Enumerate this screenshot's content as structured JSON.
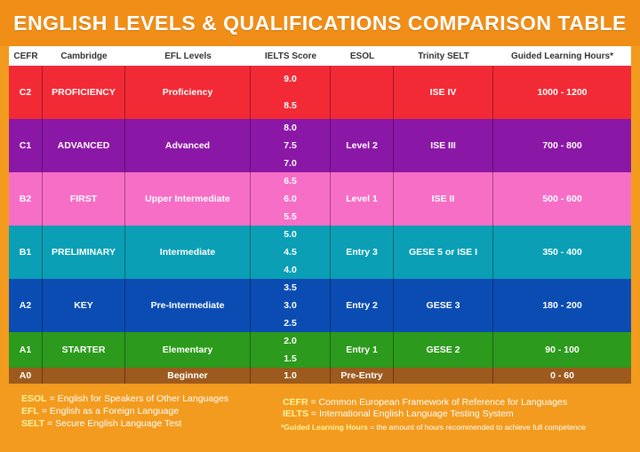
{
  "title": "ENGLISH LEVELS & QUALIFICATIONS COMPARISON TABLE",
  "headers": [
    "CEFR",
    "Cambridge",
    "EFL Levels",
    "IELTS Score",
    "ESOL",
    "Trinity SELT",
    "Guided Learning Hours*"
  ],
  "rows": [
    {
      "cefr": "C2",
      "cambridge": "PROFICIENCY",
      "efl": "Proficiency",
      "ielts": [
        "9.0",
        "8.5"
      ],
      "esol": "",
      "trinity": "ISE IV",
      "hours": "1000 - 1200",
      "color": "#f12a36"
    },
    {
      "cefr": "C1",
      "cambridge": "ADVANCED",
      "efl": "Advanced",
      "ielts": [
        "8.0",
        "7.5",
        "7.0"
      ],
      "esol": "Level 2",
      "trinity": "ISE III",
      "hours": "700 - 800",
      "color": "#8b17a6"
    },
    {
      "cefr": "B2",
      "cambridge": "FIRST",
      "efl": "Upper Intermediate",
      "ielts": [
        "6.5",
        "6.0",
        "5.5"
      ],
      "esol": "Level 1",
      "trinity": "ISE II",
      "hours": "500 - 600",
      "color": "#f76ec6"
    },
    {
      "cefr": "B1",
      "cambridge": "PRELIMINARY",
      "efl": "Intermediate",
      "ielts": [
        "5.0",
        "4.5",
        "4.0"
      ],
      "esol": "Entry 3",
      "trinity": "GESE 5 or ISE I",
      "hours": "350 - 400",
      "color": "#0a9fb5"
    },
    {
      "cefr": "A2",
      "cambridge": "KEY",
      "efl": "Pre-Intermediate",
      "ielts": [
        "3.5",
        "3.0",
        "2.5"
      ],
      "esol": "Entry 2",
      "trinity": "GESE 3",
      "hours": "180 - 200",
      "color": "#0b4cb3"
    },
    {
      "cefr": "A1",
      "cambridge": "STARTER",
      "efl": "Elementary",
      "ielts": [
        "2.0",
        "1.5"
      ],
      "esol": "Entry 1",
      "trinity": "GESE 2",
      "hours": "90 - 100",
      "color": "#2c9a1c"
    },
    {
      "cefr": "A0",
      "cambridge": "",
      "efl": "Beginner",
      "ielts": [
        "1.0"
      ],
      "esol": "Pre-Entry",
      "trinity": "",
      "hours": "0 - 60",
      "color": "#9c5a1e"
    }
  ],
  "footer": {
    "esol_abbr": "ESOL",
    "esol_def": " = English for Speakers of Other Languages",
    "efl_abbr": "EFL",
    "efl_def": " = English as a Foreign Language",
    "selt_abbr": "SELT",
    "selt_def": " = Secure English Language Test",
    "cefr_abbr": "CEFR",
    "cefr_def": " = Common European Framework of Reference for Languages",
    "ielts_abbr": "IELTS",
    "ielts_def": " = International English Language Testing System",
    "glh_abbr": "*Guided Learning Hours",
    "glh_def": " = the amount of hours recommended to achieve full competence"
  }
}
